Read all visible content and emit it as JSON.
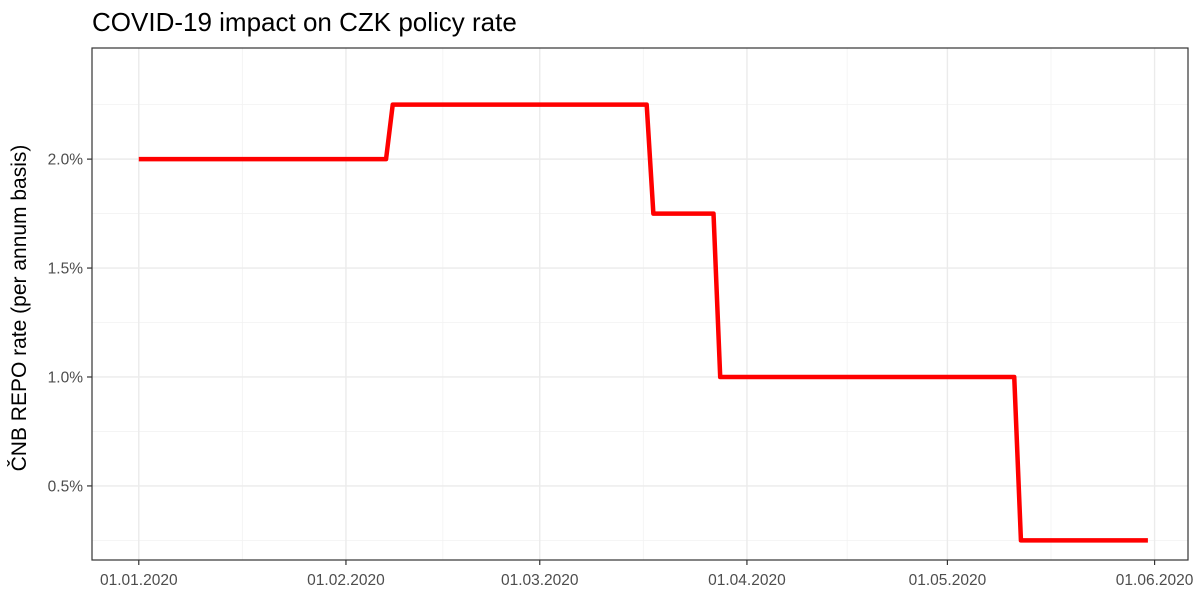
{
  "chart_data": {
    "type": "line",
    "title": "COVID-19 impact on CZK policy rate",
    "xlabel": "",
    "ylabel": "ČNB REPO rate (per annum basis)",
    "x_axis": {
      "type": "date",
      "range": [
        "2019-12-25",
        "2020-06-06"
      ],
      "ticks": [
        {
          "date": "2020-01-01",
          "label": "01.01.2020"
        },
        {
          "date": "2020-02-01",
          "label": "01.02.2020"
        },
        {
          "date": "2020-03-01",
          "label": "01.03.2020"
        },
        {
          "date": "2020-04-01",
          "label": "01.04.2020"
        },
        {
          "date": "2020-05-01",
          "label": "01.05.2020"
        },
        {
          "date": "2020-06-01",
          "label": "01.06.2020"
        }
      ]
    },
    "y_axis": {
      "unit": "%",
      "range": [
        0.16,
        2.51
      ],
      "ticks": [
        {
          "value": 0.5,
          "label": "0.5%"
        },
        {
          "value": 1.0,
          "label": "1.0%"
        },
        {
          "value": 1.5,
          "label": "1.5%"
        },
        {
          "value": 2.0,
          "label": "2.0%"
        }
      ]
    },
    "grid": true,
    "legend": "none",
    "series": [
      {
        "color": "#ff0000",
        "points": [
          {
            "x": "2020-01-01",
            "y": 2.0
          },
          {
            "x": "2020-02-07",
            "y": 2.0
          },
          {
            "x": "2020-02-08",
            "y": 2.25
          },
          {
            "x": "2020-03-17",
            "y": 2.25
          },
          {
            "x": "2020-03-18",
            "y": 1.75
          },
          {
            "x": "2020-03-27",
            "y": 1.75
          },
          {
            "x": "2020-03-28",
            "y": 1.0
          },
          {
            "x": "2020-05-11",
            "y": 1.0
          },
          {
            "x": "2020-05-12",
            "y": 0.25
          },
          {
            "x": "2020-05-31",
            "y": 0.25
          }
        ]
      }
    ]
  }
}
